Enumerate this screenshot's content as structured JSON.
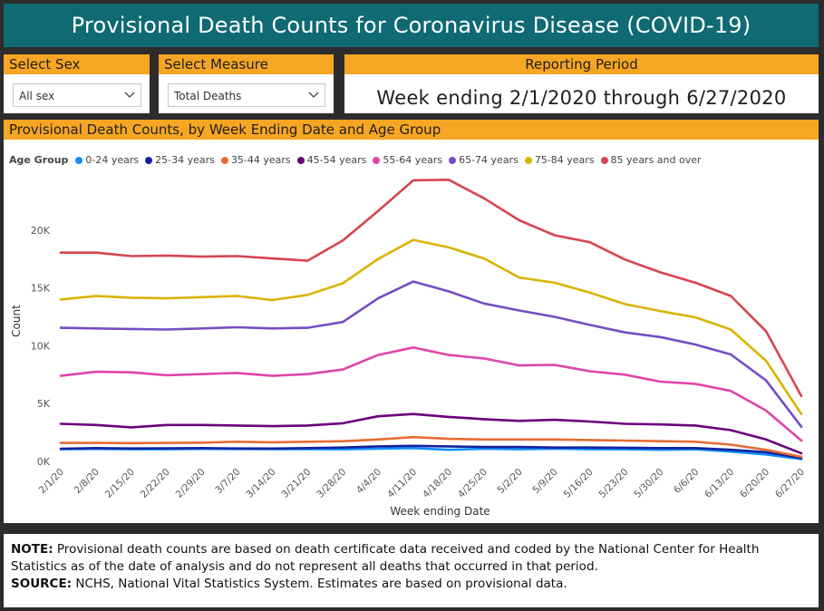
{
  "header": {
    "title": "Provisional Death Counts for Coronavirus Disease (COVID-19)"
  },
  "filters": {
    "sex": {
      "label": "Select Sex",
      "value": "All sex"
    },
    "measure": {
      "label": "Select Measure",
      "value": "Total Deaths"
    },
    "period": {
      "label": "Reporting Period",
      "value": "Week ending 2/1/2020 through 6/27/2020"
    }
  },
  "chart": {
    "heading": "Provisional Death Counts, by Week Ending Date and Age Group",
    "legend_title": "Age Group"
  },
  "chart_data": {
    "type": "line",
    "title": "Provisional Death Counts, by Week Ending Date and Age Group",
    "xlabel": "Week ending Date",
    "ylabel": "Count",
    "ylim": [
      0,
      25000
    ],
    "yticks": [
      0,
      5000,
      10000,
      15000,
      20000
    ],
    "ytick_labels": [
      "0K",
      "5K",
      "10K",
      "15K",
      "20K"
    ],
    "categories": [
      "2/1/20",
      "2/8/20",
      "2/15/20",
      "2/22/20",
      "2/29/20",
      "3/7/20",
      "3/14/20",
      "3/21/20",
      "3/28/20",
      "4/4/20",
      "4/11/20",
      "4/18/20",
      "4/25/20",
      "5/2/20",
      "5/9/20",
      "5/16/20",
      "5/23/20",
      "5/30/20",
      "6/6/20",
      "6/13/20",
      "6/20/20",
      "6/27/20"
    ],
    "series": [
      {
        "name": "0-24 years",
        "color": "#118dff",
        "values": [
          1050,
          1080,
          1050,
          1050,
          1080,
          1070,
          1060,
          1060,
          1050,
          1100,
          1150,
          1000,
          1100,
          1050,
          1100,
          1050,
          1050,
          1000,
          1050,
          850,
          600,
          200
        ]
      },
      {
        "name": "25-34 years",
        "color": "#12239e",
        "values": [
          1100,
          1150,
          1120,
          1130,
          1150,
          1120,
          1110,
          1150,
          1200,
          1300,
          1350,
          1300,
          1250,
          1250,
          1200,
          1200,
          1180,
          1150,
          1150,
          1000,
          800,
          300
        ]
      },
      {
        "name": "35-44 years",
        "color": "#e66c37",
        "values": [
          1600,
          1600,
          1580,
          1600,
          1620,
          1700,
          1650,
          1700,
          1750,
          1900,
          2100,
          1950,
          1900,
          1900,
          1900,
          1850,
          1800,
          1750,
          1700,
          1450,
          1000,
          400
        ]
      },
      {
        "name": "45-54 years",
        "color": "#6b007b",
        "values": [
          3250,
          3150,
          2950,
          3150,
          3150,
          3100,
          3050,
          3100,
          3300,
          3900,
          4100,
          3850,
          3650,
          3500,
          3600,
          3450,
          3250,
          3200,
          3100,
          2700,
          1900,
          700
        ]
      },
      {
        "name": "55-64 years",
        "color": "#e044a7",
        "values": [
          7400,
          7750,
          7700,
          7450,
          7550,
          7650,
          7400,
          7550,
          7950,
          9200,
          9850,
          9200,
          8900,
          8300,
          8350,
          7800,
          7500,
          6900,
          6700,
          6100,
          4400,
          1800
        ]
      },
      {
        "name": "65-74 years",
        "color": "#744ec2",
        "values": [
          11550,
          11500,
          11450,
          11400,
          11500,
          11600,
          11500,
          11550,
          12050,
          14100,
          15550,
          14700,
          13650,
          13050,
          12500,
          11800,
          11150,
          10750,
          10100,
          9250,
          7000,
          3000
        ]
      },
      {
        "name": "75-84 years",
        "color": "#d9b300",
        "values": [
          14000,
          14300,
          14150,
          14100,
          14200,
          14300,
          13950,
          14400,
          15400,
          17500,
          19150,
          18500,
          17550,
          15900,
          15450,
          14600,
          13600,
          13000,
          12450,
          11400,
          8700,
          4100
        ]
      },
      {
        "name": "85 years and over",
        "color": "#d64550",
        "values": [
          18050,
          18050,
          17750,
          17800,
          17700,
          17750,
          17550,
          17350,
          19100,
          21650,
          24300,
          24350,
          22750,
          20850,
          19550,
          18950,
          17450,
          16350,
          15450,
          14300,
          11250,
          5650
        ]
      }
    ]
  },
  "note": {
    "note_label": "NOTE:",
    "note_text": "Provisional death counts are based on death certificate data received and coded by the National Center for Health Statistics as of the date of analysis and do not represent all deaths that occurred in that period.",
    "source_label": "SOURCE:",
    "source_text": "NCHS, National Vital Statistics System. Estimates are based on provisional data."
  }
}
